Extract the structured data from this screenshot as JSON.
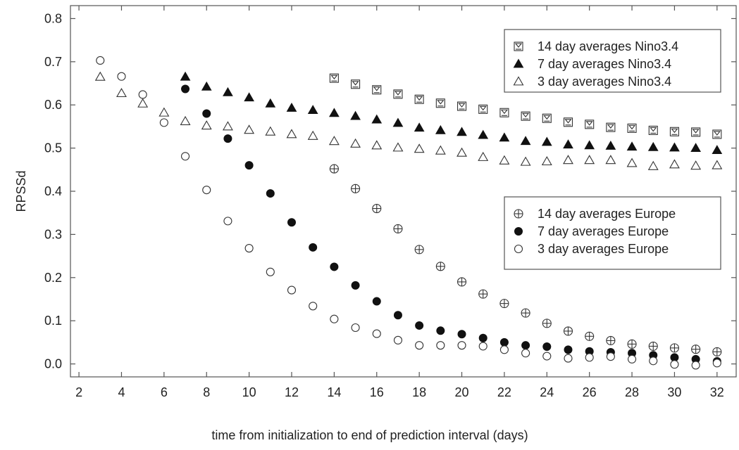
{
  "chart_data": {
    "type": "scatter",
    "xlabel": "time from initialization to end of prediction interval (days)",
    "ylabel": "RPSSd",
    "xlim": [
      1.6,
      32.9
    ],
    "ylim": [
      -0.03,
      0.83
    ],
    "xticks": [
      2,
      4,
      6,
      8,
      10,
      12,
      14,
      16,
      18,
      20,
      22,
      24,
      26,
      28,
      30,
      32
    ],
    "yticks": [
      0.0,
      0.1,
      0.2,
      0.3,
      0.4,
      0.5,
      0.6,
      0.7,
      0.8
    ],
    "ytick_labels": [
      "0.0",
      "0.1",
      "0.2",
      "0.3",
      "0.4",
      "0.5",
      "0.6",
      "0.7",
      "0.8"
    ],
    "grid": false,
    "legends": [
      {
        "placement": "top-right",
        "series": [
          0,
          1,
          2
        ]
      },
      {
        "placement": "right",
        "series": [
          3,
          4,
          5
        ]
      }
    ],
    "series": [
      {
        "name": "14 day averages Nino3.4",
        "marker": "crossed-square",
        "x": [
          14,
          15,
          16,
          17,
          18,
          19,
          20,
          21,
          22,
          23,
          24,
          25,
          26,
          27,
          28,
          29,
          30,
          31,
          32
        ],
        "y": [
          0.662,
          0.648,
          0.635,
          0.625,
          0.613,
          0.604,
          0.597,
          0.59,
          0.582,
          0.574,
          0.569,
          0.56,
          0.555,
          0.548,
          0.546,
          0.541,
          0.538,
          0.537,
          0.532
        ]
      },
      {
        "name": "7 day averages Nino3.4",
        "marker": "filled-triangle",
        "x": [
          7,
          8,
          9,
          10,
          11,
          12,
          13,
          14,
          15,
          16,
          17,
          18,
          19,
          20,
          21,
          22,
          23,
          24,
          25,
          26,
          27,
          28,
          29,
          30,
          31,
          32
        ],
        "y": [
          0.665,
          0.642,
          0.629,
          0.617,
          0.603,
          0.593,
          0.588,
          0.581,
          0.574,
          0.566,
          0.558,
          0.547,
          0.541,
          0.537,
          0.53,
          0.524,
          0.516,
          0.514,
          0.508,
          0.506,
          0.505,
          0.503,
          0.502,
          0.501,
          0.5,
          0.495
        ]
      },
      {
        "name": "3 day averages Nino3.4",
        "marker": "open-triangle",
        "x": [
          3,
          4,
          5,
          6,
          7,
          8,
          9,
          10,
          11,
          12,
          13,
          14,
          15,
          16,
          17,
          18,
          19,
          20,
          21,
          22,
          23,
          24,
          25,
          26,
          27,
          28,
          29,
          30,
          31,
          32
        ],
        "y": [
          0.665,
          0.627,
          0.603,
          0.582,
          0.562,
          0.552,
          0.55,
          0.542,
          0.538,
          0.532,
          0.528,
          0.516,
          0.51,
          0.506,
          0.501,
          0.498,
          0.494,
          0.489,
          0.479,
          0.471,
          0.468,
          0.469,
          0.472,
          0.472,
          0.472,
          0.465,
          0.458,
          0.462,
          0.459,
          0.46
        ]
      },
      {
        "name": "14 day averages Europe",
        "marker": "crossed-circle",
        "x": [
          14,
          15,
          16,
          17,
          18,
          19,
          20,
          21,
          22,
          23,
          24,
          25,
          26,
          27,
          28,
          29,
          30,
          31,
          32
        ],
        "y": [
          0.452,
          0.406,
          0.36,
          0.313,
          0.265,
          0.226,
          0.19,
          0.162,
          0.14,
          0.118,
          0.094,
          0.076,
          0.064,
          0.054,
          0.046,
          0.041,
          0.037,
          0.034,
          0.028
        ]
      },
      {
        "name": "7 day averages Europe",
        "marker": "filled-circle",
        "x": [
          7,
          8,
          9,
          10,
          11,
          12,
          13,
          14,
          15,
          16,
          17,
          18,
          19,
          20,
          21,
          22,
          23,
          24,
          25,
          26,
          27,
          28,
          29,
          30,
          31,
          32
        ],
        "y": [
          0.637,
          0.58,
          0.522,
          0.46,
          0.395,
          0.328,
          0.27,
          0.225,
          0.182,
          0.145,
          0.113,
          0.089,
          0.077,
          0.069,
          0.06,
          0.05,
          0.043,
          0.04,
          0.033,
          0.029,
          0.027,
          0.025,
          0.02,
          0.015,
          0.011,
          0.006
        ]
      },
      {
        "name": "3 day averages Europe",
        "marker": "open-circle",
        "x": [
          3,
          4,
          5,
          6,
          7,
          8,
          9,
          10,
          11,
          12,
          13,
          14,
          15,
          16,
          17,
          18,
          19,
          20,
          21,
          22,
          23,
          24,
          25,
          26,
          27,
          28,
          29,
          30,
          31,
          32
        ],
        "y": [
          0.703,
          0.666,
          0.624,
          0.559,
          0.481,
          0.403,
          0.331,
          0.268,
          0.213,
          0.171,
          0.134,
          0.104,
          0.084,
          0.07,
          0.055,
          0.043,
          0.043,
          0.043,
          0.041,
          0.033,
          0.025,
          0.018,
          0.013,
          0.015,
          0.017,
          0.011,
          0.007,
          -0.001,
          -0.003,
          0.002
        ]
      }
    ]
  }
}
